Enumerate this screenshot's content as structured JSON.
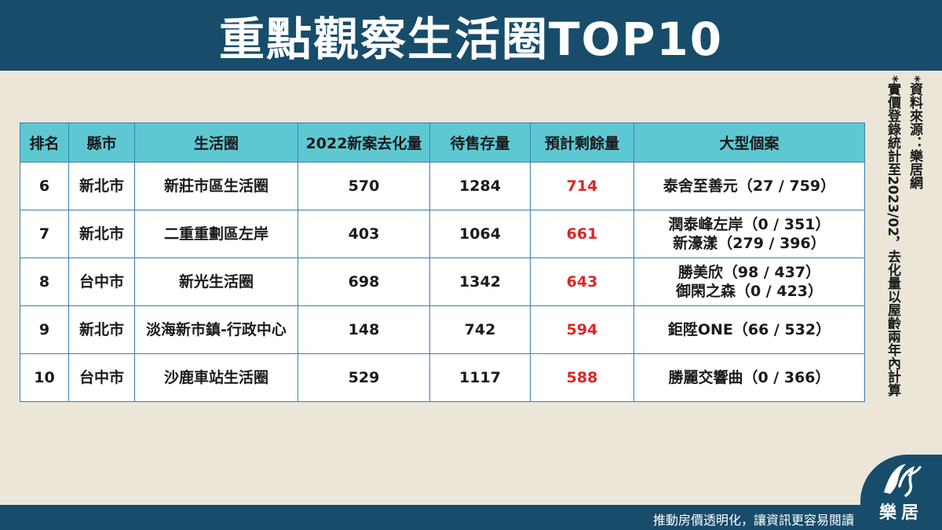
{
  "title": "重點觀察生活圈TOP10",
  "table": {
    "headers": [
      "排名",
      "縣市",
      "生活圈",
      "2022新案去化量",
      "待售存量",
      "預計剩餘量",
      "大型個案"
    ],
    "rows": [
      {
        "rank": "6",
        "city": "新北市",
        "area": "新莊市區生活圈",
        "sold": "570",
        "stock": "1284",
        "remain": "714",
        "projects": [
          "泰舍至善元（27 / 759）"
        ]
      },
      {
        "rank": "7",
        "city": "新北市",
        "area": "二重重劃區左岸",
        "sold": "403",
        "stock": "1064",
        "remain": "661",
        "projects": [
          "潤泰峰左岸（0 / 351）",
          "新濠漾（279 / 396）"
        ]
      },
      {
        "rank": "8",
        "city": "台中市",
        "area": "新光生活圈",
        "sold": "698",
        "stock": "1342",
        "remain": "643",
        "projects": [
          "勝美欣（98 / 437）",
          "御閑之森（0 / 423）"
        ]
      },
      {
        "rank": "9",
        "city": "新北市",
        "area": "淡海新市鎮-行政中心",
        "sold": "148",
        "stock": "742",
        "remain": "594",
        "projects": [
          "鉅陞ONE（66 / 532）"
        ]
      },
      {
        "rank": "10",
        "city": "台中市",
        "area": "沙鹿車站生活圈",
        "sold": "529",
        "stock": "1117",
        "remain": "588",
        "projects": [
          "勝麗交響曲（0 / 366）"
        ]
      }
    ]
  },
  "notes": {
    "source": "*資料來源：樂居網",
    "stats": "*實價登錄統計至2023/02，去化量以屋齡兩年內計算"
  },
  "footer": {
    "slogan": "推動房價透明化，讓資訊更容易閱讀",
    "logo_text": "樂居"
  },
  "colors": {
    "header_bg": "#174c6b",
    "table_header_bg": "#5ec8d2",
    "remain_text": "#e02424",
    "page_bg": "#ece6d9"
  }
}
